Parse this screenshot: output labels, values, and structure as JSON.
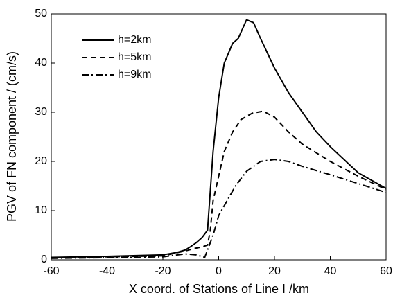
{
  "chart_data": {
    "type": "line",
    "x_label": "X coord. of Stations of Line I /km",
    "y_label": "PGV of FN component / (cm/s)",
    "xlim": [
      -60,
      60
    ],
    "xticks": [
      -60,
      -40,
      -20,
      0,
      20,
      40,
      60
    ],
    "ylim": [
      0,
      50
    ],
    "yticks": [
      0,
      10,
      20,
      30,
      40,
      50
    ],
    "legend": "upper left",
    "series": [
      {
        "name": "h=2km",
        "color": "#000000",
        "dash": "solid",
        "x": [
          -60,
          -40,
          -20,
          -15,
          -12,
          -10,
          -8,
          -6,
          -4,
          -2,
          0,
          2,
          5,
          7,
          10,
          12.5,
          15,
          20,
          25,
          30,
          35,
          40,
          50,
          60
        ],
        "values": [
          0.5,
          0.7,
          1.0,
          1.5,
          2.0,
          2.7,
          3.5,
          4.5,
          6,
          22,
          33,
          40,
          44,
          45,
          48.8,
          48.2,
          45,
          39,
          34,
          30,
          26,
          23,
          17.7,
          14.5
        ]
      },
      {
        "name": "h=5km",
        "color": "#000000",
        "dash": "dashed",
        "x": [
          -60,
          -20,
          -12,
          -8,
          -6,
          -4,
          -3,
          -2,
          0,
          2,
          5,
          8,
          12,
          16,
          20,
          25,
          30,
          40,
          50,
          60
        ],
        "values": [
          0.4,
          0.8,
          1.8,
          2.4,
          2.6,
          3,
          6,
          12,
          17,
          22,
          26,
          28.5,
          29.8,
          30.2,
          29,
          26,
          23.5,
          20,
          17,
          14.3
        ]
      },
      {
        "name": "h=9km",
        "color": "#000000",
        "dash": "dashdot",
        "x": [
          -60,
          -20,
          -12,
          -8,
          -5,
          -4,
          -2,
          0,
          3,
          6,
          10,
          15,
          20,
          25,
          30,
          40,
          50,
          60
        ],
        "values": [
          0.3,
          0.6,
          1.2,
          1.0,
          0.5,
          2,
          5,
          9,
          12,
          15,
          18,
          20,
          20.4,
          20,
          19,
          17.3,
          15.5,
          13.7
        ]
      }
    ]
  }
}
